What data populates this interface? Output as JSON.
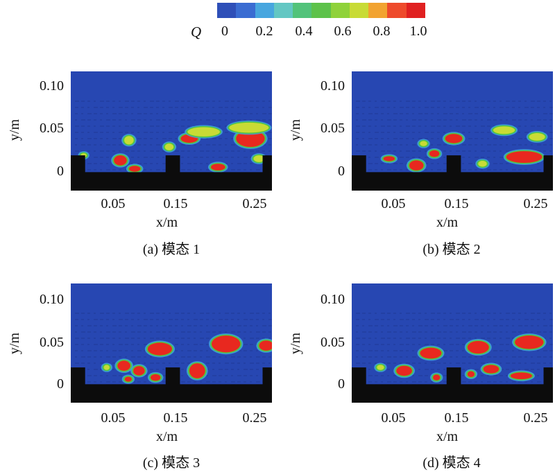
{
  "colorbar": {
    "variable": "Q",
    "colors": [
      "#2e4fb8",
      "#3a6cd2",
      "#47a6df",
      "#63c7c3",
      "#52c37a",
      "#5dc24a",
      "#8fd23a",
      "#c8db35",
      "#f2a330",
      "#ee4a2b",
      "#e02020"
    ],
    "ticks": [
      "0",
      "0.2",
      "0.4",
      "0.6",
      "0.8",
      "1.0"
    ]
  },
  "colors": {
    "field_background": "#2747b2",
    "wall": "#0c0c0c",
    "vortex_core": "#e8281f",
    "vortex_edge": "#55c640",
    "vortex_halo": "#3fa8d8"
  },
  "chart_data": [
    {
      "type": "heatmap",
      "panel": "a",
      "caption": "(a) 模态 1",
      "xlabel": "x/m",
      "ylabel": "y/m",
      "xticks": [
        "0.05",
        "0.15",
        "0.25"
      ],
      "yticks": [
        "0.10",
        "0.05",
        "0"
      ],
      "xlim": [
        0,
        0.28
      ],
      "ylim": [
        -0.022,
        0.12
      ],
      "ribs": [
        [
          0,
          0.02
        ],
        [
          0.132,
          0.152
        ],
        [
          0.267,
          0.28
        ]
      ],
      "vortices": [
        {
          "x": 0.069,
          "y": 0.014,
          "w": 0.018,
          "h": 0.012,
          "q": 1.0
        },
        {
          "x": 0.089,
          "y": 0.004,
          "w": 0.016,
          "h": 0.007,
          "q": 1.0
        },
        {
          "x": 0.081,
          "y": 0.038,
          "w": 0.013,
          "h": 0.01,
          "q": 0.6
        },
        {
          "x": 0.165,
          "y": 0.04,
          "w": 0.024,
          "h": 0.01,
          "q": 1.0
        },
        {
          "x": 0.185,
          "y": 0.048,
          "w": 0.045,
          "h": 0.011,
          "q": 0.6
        },
        {
          "x": 0.205,
          "y": 0.006,
          "w": 0.02,
          "h": 0.008,
          "q": 1.0
        },
        {
          "x": 0.25,
          "y": 0.04,
          "w": 0.04,
          "h": 0.02,
          "q": 1.0
        },
        {
          "x": 0.248,
          "y": 0.053,
          "w": 0.055,
          "h": 0.012,
          "q": 0.6
        },
        {
          "x": 0.137,
          "y": 0.03,
          "w": 0.012,
          "h": 0.008,
          "q": 0.7
        },
        {
          "x": 0.262,
          "y": 0.016,
          "w": 0.015,
          "h": 0.008,
          "q": 0.7
        },
        {
          "x": 0.018,
          "y": 0.02,
          "w": 0.008,
          "h": 0.005,
          "q": 0.5
        }
      ]
    },
    {
      "type": "heatmap",
      "panel": "b",
      "caption": "(b) 模态 2",
      "xlabel": "x/m",
      "ylabel": "y/m",
      "xticks": [
        "0.05",
        "0.15",
        "0.25"
      ],
      "yticks": [
        "0.10",
        "0.05",
        "0"
      ],
      "xlim": [
        0,
        0.28
      ],
      "ylim": [
        -0.022,
        0.12
      ],
      "ribs": [
        [
          0,
          0.02
        ],
        [
          0.132,
          0.152
        ],
        [
          0.267,
          0.28
        ]
      ],
      "vortices": [
        {
          "x": 0.052,
          "y": 0.016,
          "w": 0.016,
          "h": 0.006,
          "q": 1.0
        },
        {
          "x": 0.09,
          "y": 0.008,
          "w": 0.02,
          "h": 0.012,
          "q": 1.0
        },
        {
          "x": 0.115,
          "y": 0.022,
          "w": 0.014,
          "h": 0.008,
          "q": 0.9
        },
        {
          "x": 0.142,
          "y": 0.04,
          "w": 0.024,
          "h": 0.011,
          "q": 1.0
        },
        {
          "x": 0.182,
          "y": 0.01,
          "w": 0.012,
          "h": 0.007,
          "q": 0.8
        },
        {
          "x": 0.212,
          "y": 0.05,
          "w": 0.03,
          "h": 0.009,
          "q": 0.6
        },
        {
          "x": 0.24,
          "y": 0.018,
          "w": 0.05,
          "h": 0.014,
          "q": 1.0
        },
        {
          "x": 0.258,
          "y": 0.042,
          "w": 0.022,
          "h": 0.009,
          "q": 0.6
        },
        {
          "x": 0.1,
          "y": 0.034,
          "w": 0.01,
          "h": 0.006,
          "q": 0.6
        }
      ]
    },
    {
      "type": "heatmap",
      "panel": "c",
      "caption": "(c) 模态 3",
      "xlabel": "x/m",
      "ylabel": "y/m",
      "xticks": [
        "0.05",
        "0.15",
        "0.25"
      ],
      "yticks": [
        "0.10",
        "0.05",
        "0"
      ],
      "xlim": [
        0,
        0.28
      ],
      "ylim": [
        -0.022,
        0.12
      ],
      "ribs": [
        [
          0,
          0.02
        ],
        [
          0.132,
          0.152
        ],
        [
          0.267,
          0.28
        ]
      ],
      "vortices": [
        {
          "x": 0.074,
          "y": 0.022,
          "w": 0.018,
          "h": 0.012,
          "q": 1.0
        },
        {
          "x": 0.095,
          "y": 0.016,
          "w": 0.016,
          "h": 0.011,
          "q": 1.0
        },
        {
          "x": 0.118,
          "y": 0.008,
          "w": 0.014,
          "h": 0.008,
          "q": 1.0
        },
        {
          "x": 0.124,
          "y": 0.042,
          "w": 0.034,
          "h": 0.015,
          "q": 1.0
        },
        {
          "x": 0.176,
          "y": 0.016,
          "w": 0.022,
          "h": 0.018,
          "q": 1.0
        },
        {
          "x": 0.216,
          "y": 0.048,
          "w": 0.04,
          "h": 0.02,
          "q": 1.0
        },
        {
          "x": 0.272,
          "y": 0.046,
          "w": 0.02,
          "h": 0.012,
          "q": 1.0
        },
        {
          "x": 0.05,
          "y": 0.02,
          "w": 0.008,
          "h": 0.006,
          "q": 0.6
        },
        {
          "x": 0.08,
          "y": 0.006,
          "w": 0.01,
          "h": 0.006,
          "q": 0.9
        }
      ]
    },
    {
      "type": "heatmap",
      "panel": "d",
      "caption": "(d) 模态 4",
      "xlabel": "x/m",
      "ylabel": "y/m",
      "xticks": [
        "0.05",
        "0.15",
        "0.25"
      ],
      "yticks": [
        "0.10",
        "0.05",
        "0"
      ],
      "xlim": [
        0,
        0.28
      ],
      "ylim": [
        -0.022,
        0.12
      ],
      "ribs": [
        [
          0,
          0.02
        ],
        [
          0.132,
          0.152
        ],
        [
          0.267,
          0.28
        ]
      ],
      "vortices": [
        {
          "x": 0.073,
          "y": 0.016,
          "w": 0.022,
          "h": 0.012,
          "q": 1.0
        },
        {
          "x": 0.11,
          "y": 0.037,
          "w": 0.03,
          "h": 0.013,
          "q": 1.0
        },
        {
          "x": 0.118,
          "y": 0.008,
          "w": 0.01,
          "h": 0.007,
          "q": 1.0
        },
        {
          "x": 0.176,
          "y": 0.044,
          "w": 0.03,
          "h": 0.015,
          "q": 1.0
        },
        {
          "x": 0.194,
          "y": 0.018,
          "w": 0.022,
          "h": 0.01,
          "q": 1.0
        },
        {
          "x": 0.247,
          "y": 0.05,
          "w": 0.04,
          "h": 0.016,
          "q": 1.0
        },
        {
          "x": 0.236,
          "y": 0.01,
          "w": 0.03,
          "h": 0.008,
          "q": 1.0
        },
        {
          "x": 0.166,
          "y": 0.012,
          "w": 0.01,
          "h": 0.007,
          "q": 0.9
        },
        {
          "x": 0.04,
          "y": 0.02,
          "w": 0.01,
          "h": 0.006,
          "q": 0.6
        }
      ]
    }
  ]
}
